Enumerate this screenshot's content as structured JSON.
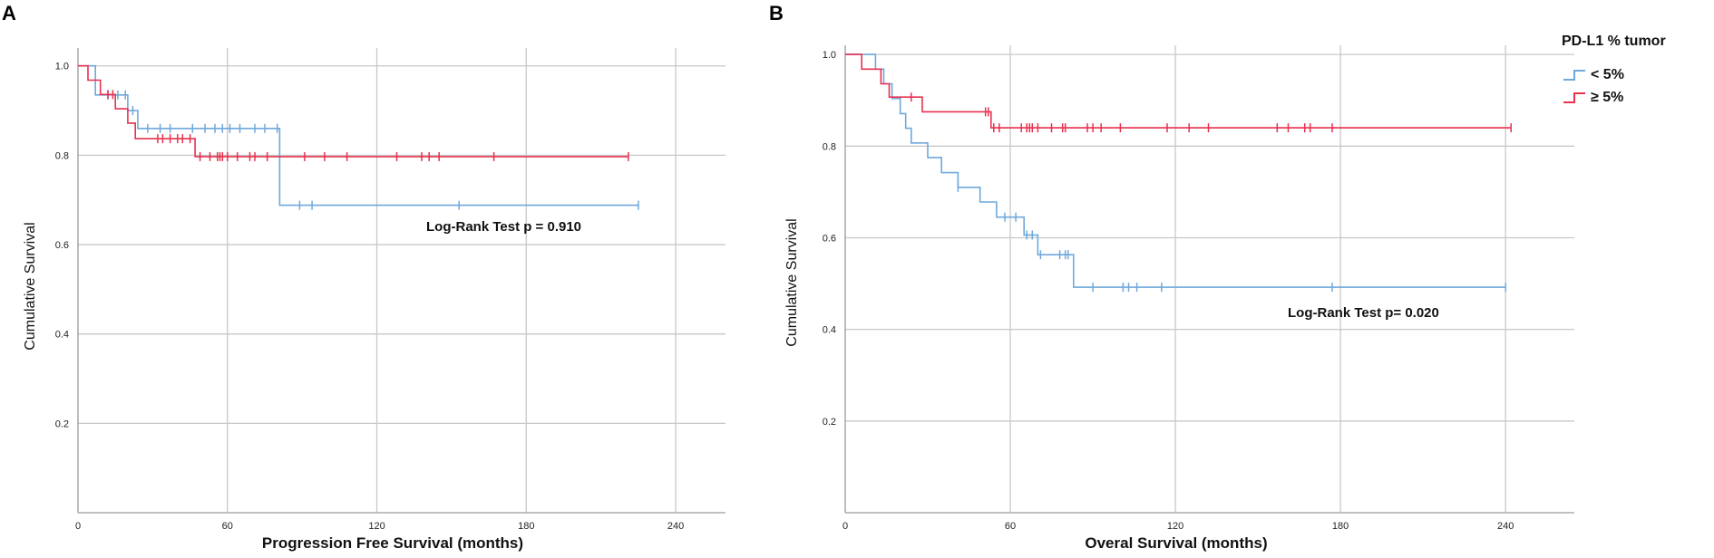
{
  "colors": {
    "low": "#6fa8dc",
    "high": "#e8314f",
    "grid": "#c8c8c8",
    "axis": "#9a9a9a"
  },
  "legend": {
    "title": "PD-L1 % tumor",
    "items": [
      {
        "label": "< 5%",
        "series": "low"
      },
      {
        "label": "≥ 5%",
        "series": "high"
      }
    ]
  },
  "chart_data": [
    {
      "panel": "A",
      "type": "line",
      "subtype": "kaplan-meier step",
      "xlabel": "Progression Free Survival (months)",
      "ylabel": "Cumulative Survival",
      "xlim": [
        0,
        260
      ],
      "ylim": [
        0,
        1.04
      ],
      "xticks": [
        0,
        60,
        120,
        180,
        240
      ],
      "yticks": [
        0.2,
        0.4,
        0.6,
        0.8,
        1.0
      ],
      "xtick_labels": [
        "0",
        "60",
        "120",
        "180",
        "240"
      ],
      "ytick_labels": [
        "0.2",
        "0.4",
        "0.6",
        "0.8",
        "1.0"
      ],
      "annotation": "Log-Rank Test p = 0.910",
      "series": [
        {
          "name": "< 5%",
          "key": "low",
          "steps": [
            [
              0,
              1.0
            ],
            [
              7,
              1.0
            ],
            [
              7,
              0.935
            ],
            [
              20,
              0.935
            ],
            [
              20,
              0.9
            ],
            [
              24,
              0.9
            ],
            [
              24,
              0.86
            ],
            [
              81,
              0.86
            ],
            [
              81,
              0.688
            ],
            [
              225,
              0.688
            ]
          ],
          "censor": [
            [
              12,
              0.935
            ],
            [
              16,
              0.935
            ],
            [
              19,
              0.935
            ],
            [
              22,
              0.9
            ],
            [
              28,
              0.86
            ],
            [
              33,
              0.86
            ],
            [
              37,
              0.86
            ],
            [
              46,
              0.86
            ],
            [
              51,
              0.86
            ],
            [
              55,
              0.86
            ],
            [
              58,
              0.86
            ],
            [
              61,
              0.86
            ],
            [
              65,
              0.86
            ],
            [
              71,
              0.86
            ],
            [
              75,
              0.86
            ],
            [
              80,
              0.86
            ],
            [
              89,
              0.688
            ],
            [
              94,
              0.688
            ],
            [
              153,
              0.688
            ],
            [
              225,
              0.688
            ]
          ]
        },
        {
          "name": "≥ 5%",
          "key": "high",
          "steps": [
            [
              0,
              1.0
            ],
            [
              4,
              1.0
            ],
            [
              4,
              0.968
            ],
            [
              9,
              0.968
            ],
            [
              9,
              0.936
            ],
            [
              15,
              0.936
            ],
            [
              15,
              0.904
            ],
            [
              20,
              0.904
            ],
            [
              20,
              0.872
            ],
            [
              23,
              0.872
            ],
            [
              23,
              0.837
            ],
            [
              47,
              0.837
            ],
            [
              47,
              0.797
            ],
            [
              221,
              0.797
            ]
          ],
          "censor": [
            [
              12,
              0.936
            ],
            [
              14,
              0.936
            ],
            [
              32,
              0.837
            ],
            [
              34,
              0.837
            ],
            [
              37,
              0.837
            ],
            [
              40,
              0.837
            ],
            [
              42,
              0.837
            ],
            [
              45,
              0.837
            ],
            [
              49,
              0.797
            ],
            [
              53,
              0.797
            ],
            [
              56,
              0.797
            ],
            [
              57,
              0.797
            ],
            [
              58,
              0.797
            ],
            [
              60,
              0.797
            ],
            [
              64,
              0.797
            ],
            [
              69,
              0.797
            ],
            [
              71,
              0.797
            ],
            [
              76,
              0.797
            ],
            [
              91,
              0.797
            ],
            [
              99,
              0.797
            ],
            [
              108,
              0.797
            ],
            [
              128,
              0.797
            ],
            [
              138,
              0.797
            ],
            [
              141,
              0.797
            ],
            [
              145,
              0.797
            ],
            [
              167,
              0.797
            ],
            [
              221,
              0.797
            ]
          ]
        }
      ]
    },
    {
      "panel": "B",
      "type": "line",
      "subtype": "kaplan-meier step",
      "xlabel": "Overal Survival (months)",
      "ylabel": "Cumulative Survival",
      "xlim": [
        0,
        265
      ],
      "ylim": [
        0,
        1.02
      ],
      "xticks": [
        0,
        60,
        120,
        180,
        240
      ],
      "yticks": [
        0.2,
        0.4,
        0.6,
        0.8,
        1.0
      ],
      "xtick_labels": [
        "0",
        "60",
        "120",
        "180",
        "240"
      ],
      "ytick_labels": [
        "0.2",
        "0.4",
        "0.6",
        "0.8",
        "1.0"
      ],
      "annotation": "Log-Rank Test p= 0.020",
      "series": [
        {
          "name": "< 5%",
          "key": "low",
          "steps": [
            [
              0,
              1.0
            ],
            [
              11,
              1.0
            ],
            [
              11,
              0.968
            ],
            [
              14,
              0.968
            ],
            [
              14,
              0.936
            ],
            [
              17,
              0.936
            ],
            [
              17,
              0.904
            ],
            [
              20,
              0.904
            ],
            [
              20,
              0.871
            ],
            [
              22,
              0.871
            ],
            [
              22,
              0.839
            ],
            [
              24,
              0.839
            ],
            [
              24,
              0.807
            ],
            [
              30,
              0.807
            ],
            [
              30,
              0.775
            ],
            [
              35,
              0.775
            ],
            [
              35,
              0.742
            ],
            [
              41,
              0.742
            ],
            [
              41,
              0.71
            ],
            [
              49,
              0.71
            ],
            [
              49,
              0.678
            ],
            [
              55,
              0.678
            ],
            [
              55,
              0.645
            ],
            [
              65,
              0.645
            ],
            [
              65,
              0.606
            ],
            [
              70,
              0.606
            ],
            [
              70,
              0.563
            ],
            [
              83,
              0.563
            ],
            [
              83,
              0.492
            ],
            [
              240,
              0.492
            ]
          ],
          "censor": [
            [
              41,
              0.71
            ],
            [
              58,
              0.645
            ],
            [
              62,
              0.645
            ],
            [
              66,
              0.606
            ],
            [
              68,
              0.606
            ],
            [
              71,
              0.563
            ],
            [
              78,
              0.563
            ],
            [
              80,
              0.563
            ],
            [
              81,
              0.563
            ],
            [
              90,
              0.492
            ],
            [
              101,
              0.492
            ],
            [
              103,
              0.492
            ],
            [
              106,
              0.492
            ],
            [
              115,
              0.492
            ],
            [
              177,
              0.492
            ],
            [
              240,
              0.492
            ]
          ]
        },
        {
          "name": "≥ 5%",
          "key": "high",
          "steps": [
            [
              0,
              1.0
            ],
            [
              6,
              1.0
            ],
            [
              6,
              0.968
            ],
            [
              13,
              0.968
            ],
            [
              13,
              0.936
            ],
            [
              16,
              0.936
            ],
            [
              16,
              0.907
            ],
            [
              28,
              0.907
            ],
            [
              28,
              0.875
            ],
            [
              53,
              0.875
            ],
            [
              53,
              0.84
            ],
            [
              242,
              0.84
            ]
          ],
          "censor": [
            [
              24,
              0.907
            ],
            [
              51,
              0.875
            ],
            [
              52,
              0.875
            ],
            [
              54,
              0.84
            ],
            [
              56,
              0.84
            ],
            [
              64,
              0.84
            ],
            [
              66,
              0.84
            ],
            [
              67,
              0.84
            ],
            [
              68,
              0.84
            ],
            [
              70,
              0.84
            ],
            [
              75,
              0.84
            ],
            [
              79,
              0.84
            ],
            [
              80,
              0.84
            ],
            [
              88,
              0.84
            ],
            [
              90,
              0.84
            ],
            [
              93,
              0.84
            ],
            [
              100,
              0.84
            ],
            [
              117,
              0.84
            ],
            [
              125,
              0.84
            ],
            [
              132,
              0.84
            ],
            [
              157,
              0.84
            ],
            [
              161,
              0.84
            ],
            [
              167,
              0.84
            ],
            [
              169,
              0.84
            ],
            [
              177,
              0.84
            ],
            [
              242,
              0.84
            ]
          ]
        }
      ]
    }
  ]
}
